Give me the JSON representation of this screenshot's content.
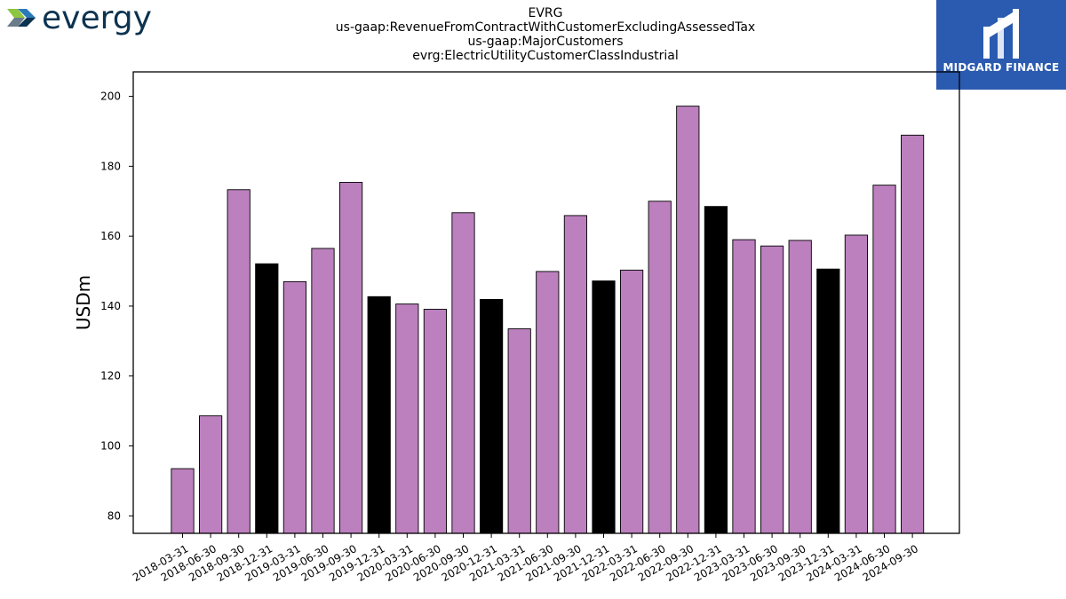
{
  "header": {
    "company_logo_text": "evergy",
    "watermark_logo_text": "MIDGARD FINANCE",
    "title_lines": [
      "EVRG",
      "us-gaap:RevenueFromContractWithCustomerExcludingAssessedTax",
      "us-gaap:MajorCustomers",
      "evrg:ElectricUtilityCustomerClassIndustrial"
    ]
  },
  "colors": {
    "purple_bar": "#bb80bd",
    "black_bar": "#000000",
    "logo_green": "#8dc63f",
    "logo_gray": "#6b7b8a",
    "logo_navy": "#0c3350",
    "watermark_bg": "#2b5bb0"
  },
  "chart_data": {
    "type": "bar",
    "ylabel": "USDm",
    "xlabel": "",
    "ylim": [
      75,
      207
    ],
    "yticks": [
      80,
      100,
      120,
      140,
      160,
      180,
      200
    ],
    "grid": false,
    "categories": [
      "2018-03-31",
      "2018-06-30",
      "2018-09-30",
      "2018-12-31",
      "2019-03-31",
      "2019-06-30",
      "2019-09-30",
      "2019-12-31",
      "2020-03-31",
      "2020-06-30",
      "2020-09-30",
      "2020-12-31",
      "2021-03-31",
      "2021-06-30",
      "2021-09-30",
      "2021-12-31",
      "2022-03-31",
      "2022-06-30",
      "2022-09-30",
      "2022-12-31",
      "2023-03-31",
      "2023-06-30",
      "2023-09-30",
      "2023-12-31",
      "2024-03-31",
      "2024-06-30",
      "2024-09-30"
    ],
    "values": [
      93.5,
      108.6,
      173.3,
      152.1,
      147.0,
      156.5,
      175.4,
      142.7,
      140.6,
      139.1,
      166.7,
      141.9,
      133.5,
      149.9,
      165.9,
      147.2,
      150.3,
      170.0,
      197.2,
      168.5,
      159.0,
      157.2,
      158.8,
      150.6,
      160.3,
      174.6,
      188.9
    ],
    "bar_colors": [
      "purple",
      "purple",
      "purple",
      "black",
      "purple",
      "purple",
      "purple",
      "black",
      "purple",
      "purple",
      "purple",
      "black",
      "purple",
      "purple",
      "purple",
      "black",
      "purple",
      "purple",
      "purple",
      "black",
      "purple",
      "purple",
      "purple",
      "black",
      "purple",
      "purple",
      "purple"
    ]
  }
}
